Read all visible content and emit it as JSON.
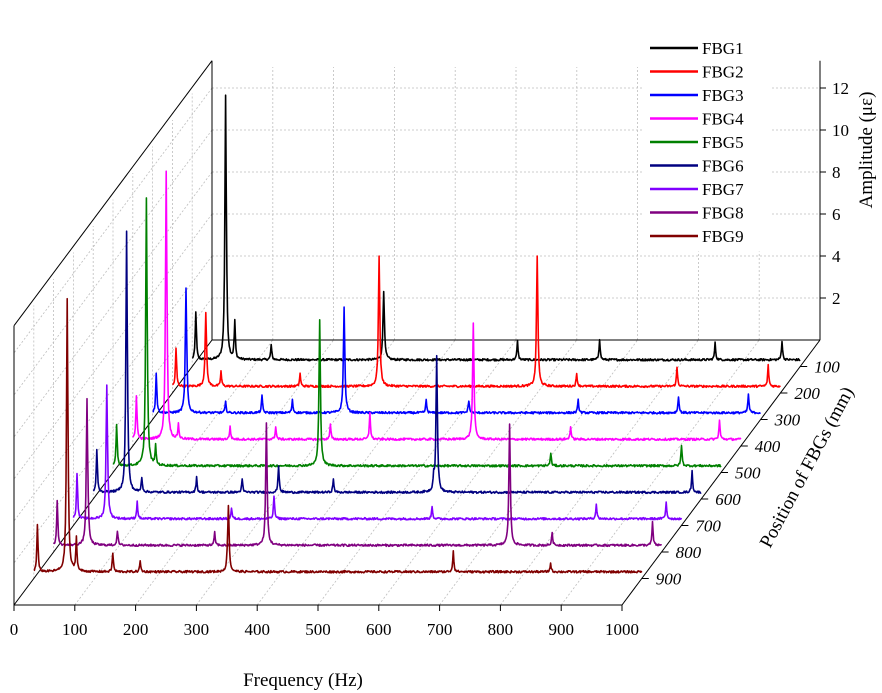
{
  "chart_data": {
    "type": "line",
    "projection": "3d-waterfall",
    "xlabel": "Frequency (Hz)",
    "ylabel": "Amplitude (με)",
    "zlabel": "Position of FBGs (mm)",
    "xlim": [
      0,
      1000
    ],
    "ylim": [
      0,
      13
    ],
    "x_ticks": [
      0,
      100,
      200,
      300,
      400,
      500,
      600,
      700,
      800,
      900,
      1000
    ],
    "y_ticks": [
      2,
      4,
      6,
      8,
      10,
      12
    ],
    "z_ticks": [
      100,
      200,
      300,
      400,
      500,
      600,
      700,
      800,
      900
    ],
    "grid": true,
    "legend_position": "top-right",
    "series": [
      {
        "name": "FBG1",
        "z": 100,
        "color": "#000000",
        "peaks": [
          [
            6,
            2.3
          ],
          [
            55,
            12.6
          ],
          [
            70,
            1.8
          ],
          [
            130,
            0.7
          ],
          [
            315,
            3.3
          ],
          [
            535,
            0.9
          ],
          [
            670,
            1.0
          ],
          [
            860,
            0.8
          ],
          [
            970,
            0.9
          ]
        ]
      },
      {
        "name": "FBG2",
        "z": 200,
        "color": "#ff0000",
        "peaks": [
          [
            6,
            1.8
          ],
          [
            55,
            3.5
          ],
          [
            80,
            0.7
          ],
          [
            210,
            0.6
          ],
          [
            340,
            6.2
          ],
          [
            600,
            6.2
          ],
          [
            665,
            0.6
          ],
          [
            830,
            0.9
          ],
          [
            980,
            1.0
          ]
        ]
      },
      {
        "name": "FBG3",
        "z": 300,
        "color": "#0000ff",
        "peaks": [
          [
            6,
            1.9
          ],
          [
            55,
            5.9
          ],
          [
            120,
            0.5
          ],
          [
            180,
            0.8
          ],
          [
            230,
            0.6
          ],
          [
            315,
            5.0
          ],
          [
            450,
            0.6
          ],
          [
            520,
            0.6
          ],
          [
            700,
            0.6
          ],
          [
            865,
            0.8
          ],
          [
            980,
            0.9
          ]
        ]
      },
      {
        "name": "FBG4",
        "z": 400,
        "color": "#ff00ff",
        "peaks": [
          [
            6,
            2.1
          ],
          [
            55,
            12.8
          ],
          [
            75,
            0.7
          ],
          [
            160,
            0.6
          ],
          [
            235,
            0.6
          ],
          [
            325,
            0.7
          ],
          [
            390,
            1.3
          ],
          [
            560,
            5.5
          ],
          [
            720,
            0.6
          ],
          [
            965,
            0.9
          ]
        ]
      },
      {
        "name": "FBG5",
        "z": 500,
        "color": "#008000",
        "peaks": [
          [
            6,
            2.0
          ],
          [
            55,
            12.8
          ],
          [
            70,
            0.9
          ],
          [
            340,
            7.0
          ],
          [
            720,
            0.6
          ],
          [
            935,
            1.0
          ]
        ]
      },
      {
        "name": "FBG6",
        "z": 600,
        "color": "#000080",
        "peaks": [
          [
            6,
            2.0
          ],
          [
            55,
            12.4
          ],
          [
            80,
            0.7
          ],
          [
            170,
            0.7
          ],
          [
            245,
            0.6
          ],
          [
            305,
            1.3
          ],
          [
            395,
            0.6
          ],
          [
            560,
            0.7
          ],
          [
            565,
            6.5
          ],
          [
            985,
            1.0
          ]
        ]
      },
      {
        "name": "FBG7",
        "z": 700,
        "color": "#8000ff",
        "peaks": [
          [
            6,
            2.2
          ],
          [
            55,
            6.4
          ],
          [
            105,
            0.8
          ],
          [
            260,
            0.5
          ],
          [
            330,
            1.1
          ],
          [
            590,
            0.6
          ],
          [
            860,
            0.7
          ],
          [
            975,
            0.8
          ]
        ]
      },
      {
        "name": "FBG8",
        "z": 800,
        "color": "#800080",
        "peaks": [
          [
            6,
            2.1
          ],
          [
            55,
            7.0
          ],
          [
            105,
            0.7
          ],
          [
            265,
            0.6
          ],
          [
            350,
            5.8
          ],
          [
            750,
            5.8
          ],
          [
            820,
            0.6
          ],
          [
            985,
            1.1
          ]
        ]
      },
      {
        "name": "FBG9",
        "z": 900,
        "color": "#800000",
        "peaks": [
          [
            6,
            2.2
          ],
          [
            55,
            13.0
          ],
          [
            70,
            1.6
          ],
          [
            130,
            0.9
          ],
          [
            175,
            0.5
          ],
          [
            320,
            3.2
          ],
          [
            690,
            1.0
          ],
          [
            850,
            0.4
          ]
        ]
      }
    ]
  }
}
